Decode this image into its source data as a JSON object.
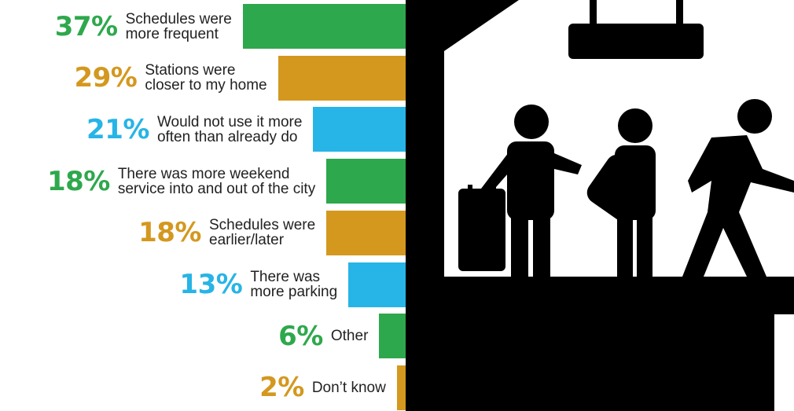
{
  "chart_data": {
    "type": "bar",
    "orientation": "horizontal",
    "categories": [
      "Schedules were\nmore frequent",
      "Stations were\ncloser to my home",
      "Would not use it more\noften than already do",
      "There was more weekend\nservice into and out of the city",
      "Schedules were\nearlier/later",
      "There was\nmore parking",
      "Other",
      "Don’t know"
    ],
    "values": [
      37,
      29,
      21,
      18,
      18,
      13,
      6,
      2
    ],
    "value_labels": [
      "37%",
      "29%",
      "21%",
      "18%",
      "18%",
      "13%",
      "6%",
      "2%"
    ],
    "colors": [
      "#2ea84c",
      "#d4981f",
      "#27b4e6",
      "#2ea84c",
      "#d4981f",
      "#27b4e6",
      "#2ea84c",
      "#d4981f"
    ]
  }
}
